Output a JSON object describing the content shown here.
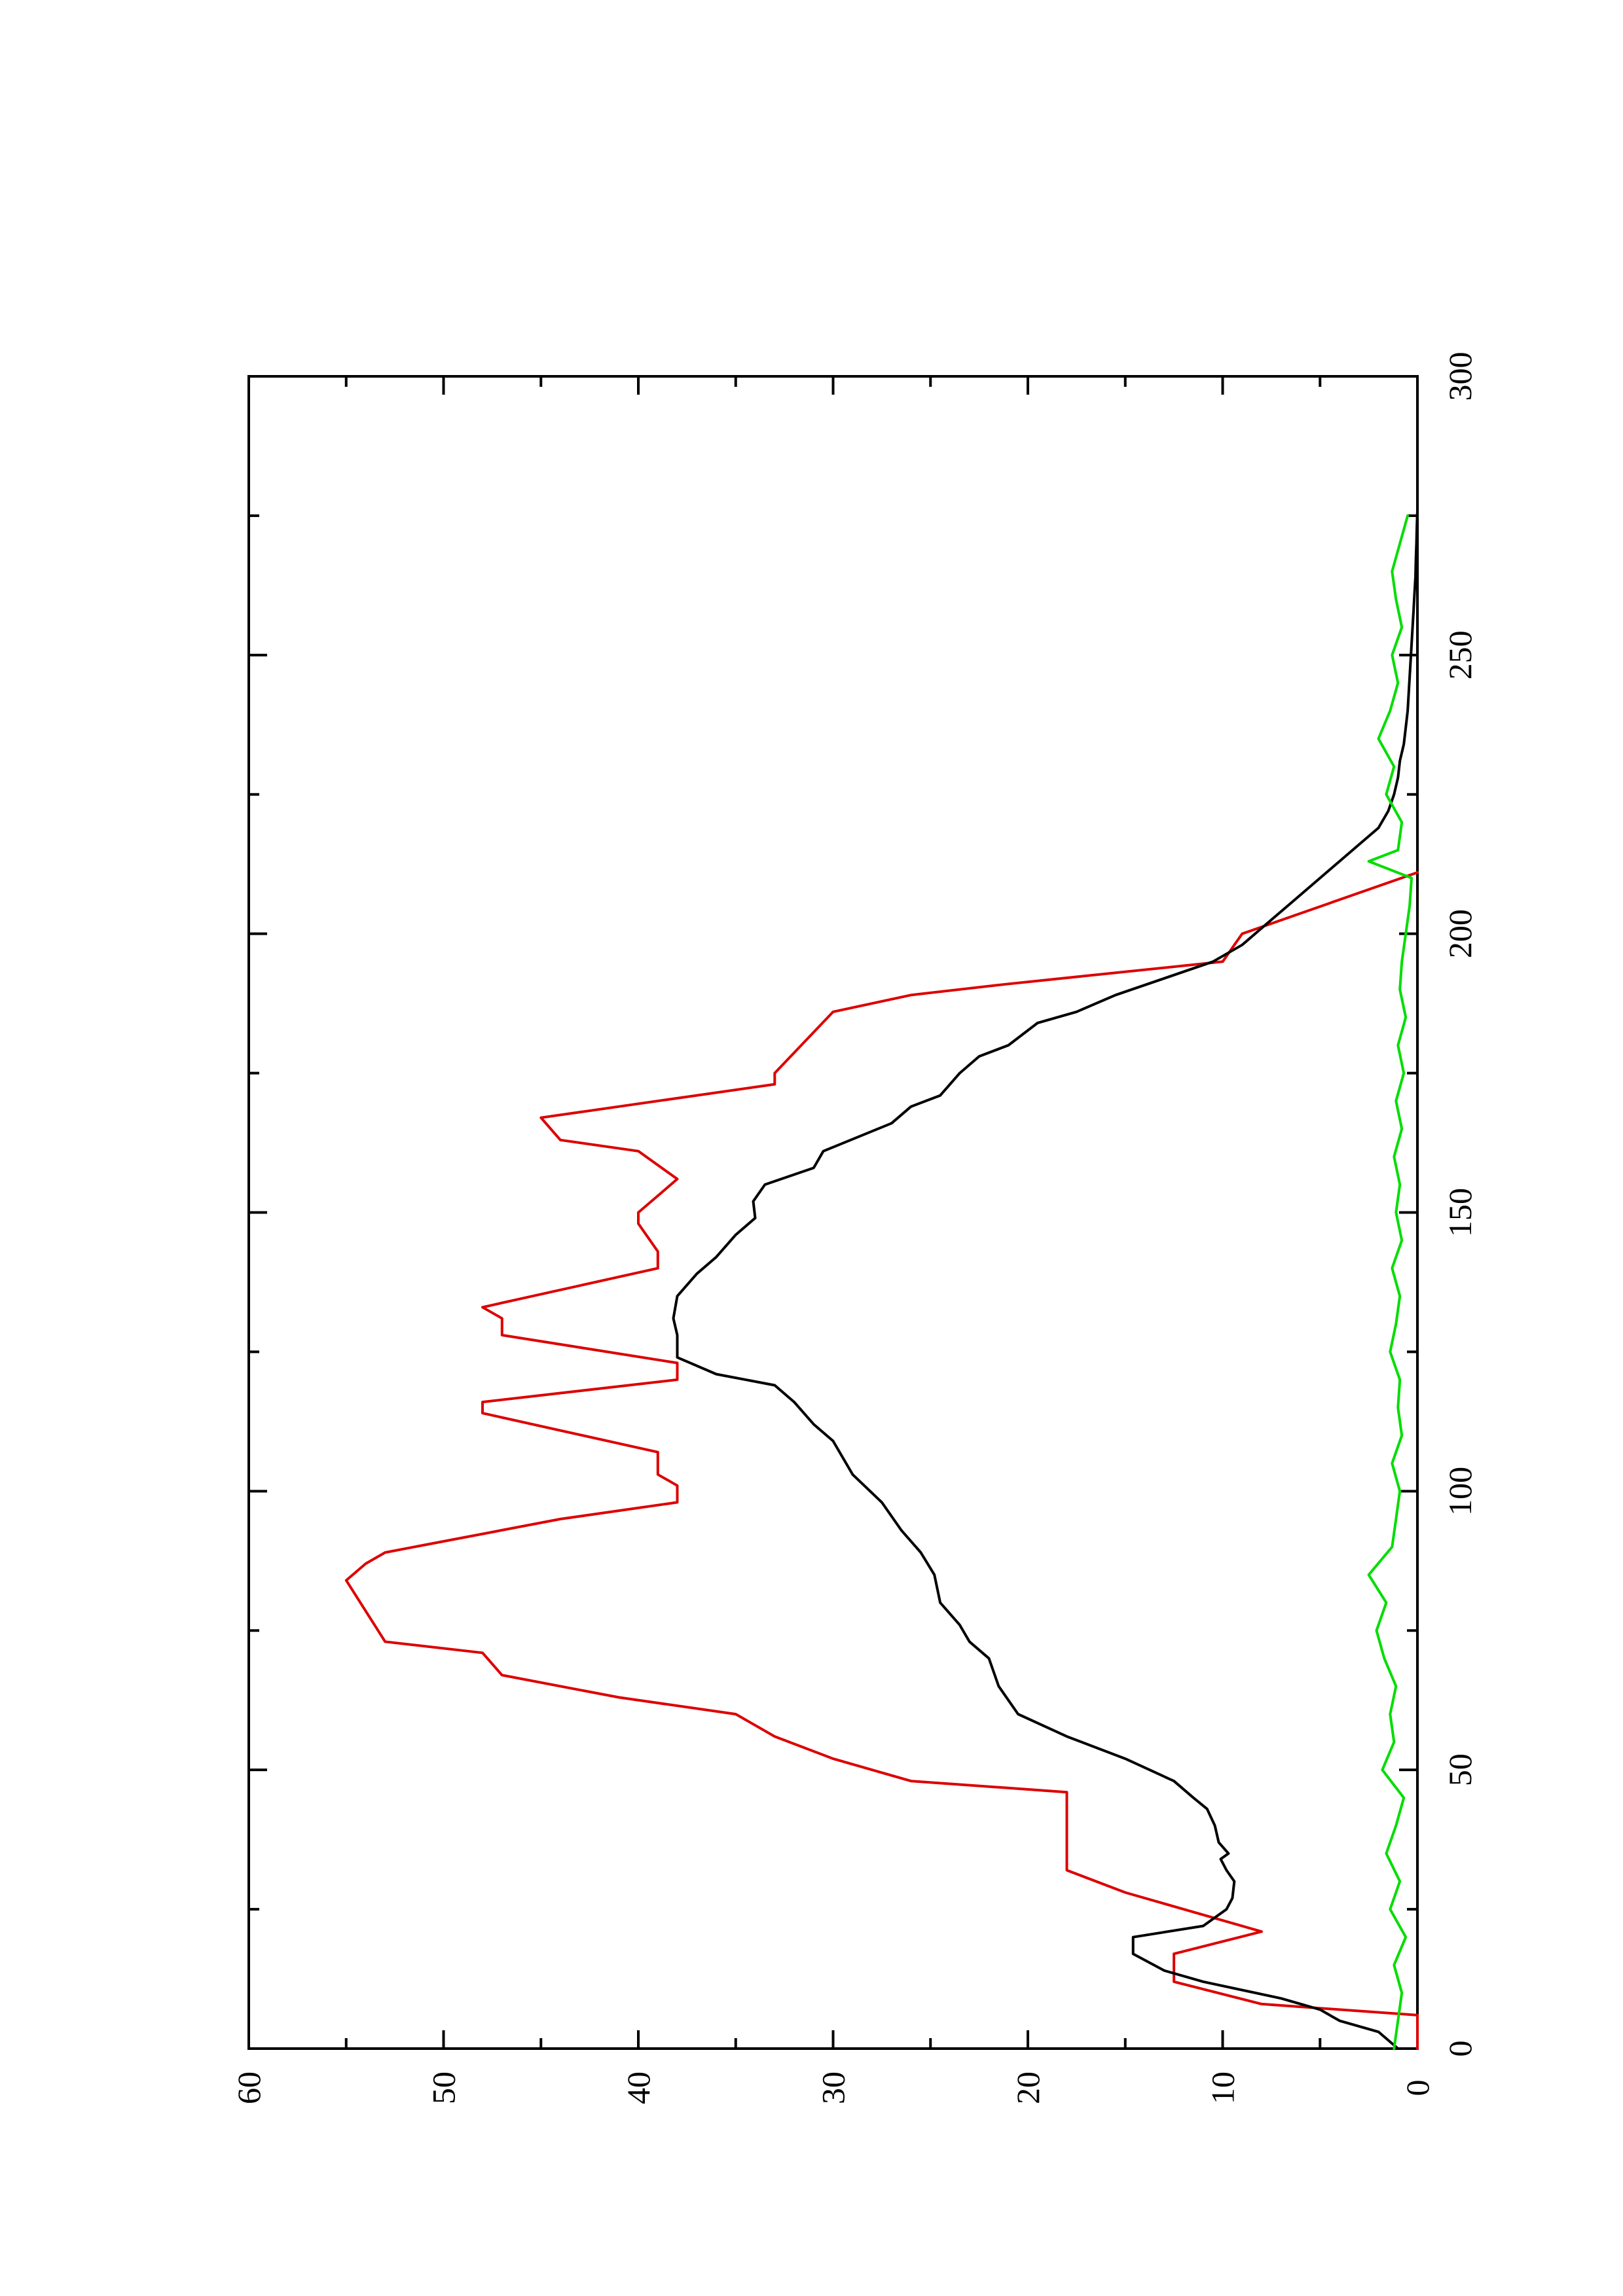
{
  "chart_data": {
    "type": "line",
    "title": "",
    "xlabel": "",
    "ylabel": "",
    "orientation": "rotated-90-counterclockwise",
    "xlim": [
      0,
      300
    ],
    "ylim": [
      0,
      60
    ],
    "x_ticks": [
      {
        "value": 0,
        "label": "0"
      },
      {
        "value": 50,
        "label": "50"
      },
      {
        "value": 100,
        "label": "100"
      },
      {
        "value": 150,
        "label": "150"
      },
      {
        "value": 200,
        "label": "200"
      },
      {
        "value": 250,
        "label": "250"
      },
      {
        "value": 300,
        "label": "300"
      }
    ],
    "y_ticks": [
      {
        "value": 0,
        "label": "0"
      },
      {
        "value": 10,
        "label": "10"
      },
      {
        "value": 20,
        "label": "20"
      },
      {
        "value": 30,
        "label": "30"
      },
      {
        "value": 40,
        "label": "40"
      },
      {
        "value": 50,
        "label": "50"
      },
      {
        "value": 60,
        "label": "60"
      }
    ],
    "grid": false,
    "series": [
      {
        "color": "#dd0000",
        "points": [
          [
            0,
            0
          ],
          [
            6,
            0
          ],
          [
            8,
            8
          ],
          [
            12,
            12.5
          ],
          [
            17,
            12.5
          ],
          [
            21,
            8
          ],
          [
            26,
            13
          ],
          [
            28,
            15
          ],
          [
            32,
            18
          ],
          [
            46,
            18
          ],
          [
            48,
            26
          ],
          [
            52,
            30
          ],
          [
            56,
            33
          ],
          [
            60,
            35
          ],
          [
            63,
            41
          ],
          [
            67,
            47
          ],
          [
            71,
            48
          ],
          [
            73,
            53
          ],
          [
            84,
            55
          ],
          [
            87,
            54
          ],
          [
            89,
            53
          ],
          [
            95,
            44
          ],
          [
            98,
            38
          ],
          [
            101,
            38
          ],
          [
            103,
            39
          ],
          [
            107,
            39
          ],
          [
            114,
            48
          ],
          [
            116,
            48
          ],
          [
            120,
            38
          ],
          [
            123,
            38
          ],
          [
            128,
            47
          ],
          [
            131,
            47
          ],
          [
            133,
            48
          ],
          [
            140,
            39
          ],
          [
            143,
            39
          ],
          [
            148,
            40
          ],
          [
            150,
            40
          ],
          [
            153,
            39
          ],
          [
            156,
            38
          ],
          [
            161,
            40
          ],
          [
            163,
            44
          ],
          [
            167,
            45
          ],
          [
            173,
            33
          ],
          [
            175,
            33
          ],
          [
            186,
            30
          ],
          [
            189,
            26
          ],
          [
            191,
            21
          ],
          [
            195,
            10
          ],
          [
            200,
            9
          ],
          [
            211,
            0
          ]
        ]
      },
      {
        "color": "#000000",
        "points": [
          [
            0,
            1
          ],
          [
            3,
            2
          ],
          [
            5,
            4
          ],
          [
            7,
            5
          ],
          [
            9,
            7
          ],
          [
            12,
            11
          ],
          [
            14,
            13
          ],
          [
            17,
            14.6
          ],
          [
            20,
            14.6
          ],
          [
            22,
            11
          ],
          [
            25,
            9.8
          ],
          [
            27,
            9.5
          ],
          [
            30,
            9.4
          ],
          [
            32,
            9.8
          ],
          [
            34,
            10.1
          ],
          [
            35,
            9.7
          ],
          [
            37,
            10.2
          ],
          [
            40,
            10.4
          ],
          [
            43,
            10.8
          ],
          [
            45,
            11.5
          ],
          [
            48,
            12.5
          ],
          [
            52,
            15
          ],
          [
            56,
            18
          ],
          [
            60,
            20.5
          ],
          [
            65,
            21.5
          ],
          [
            70,
            22
          ],
          [
            73,
            23
          ],
          [
            76,
            23.5
          ],
          [
            80,
            24.5
          ],
          [
            85,
            24.8
          ],
          [
            89,
            25.5
          ],
          [
            93,
            26.5
          ],
          [
            98,
            27.5
          ],
          [
            103,
            29
          ],
          [
            109,
            30
          ],
          [
            112,
            31
          ],
          [
            116,
            32
          ],
          [
            119,
            33
          ],
          [
            121,
            36
          ],
          [
            124,
            38
          ],
          [
            128,
            38
          ],
          [
            131,
            38.2
          ],
          [
            135,
            38
          ],
          [
            139,
            37
          ],
          [
            142,
            36
          ],
          [
            146,
            35
          ],
          [
            149,
            34
          ],
          [
            152,
            34.1
          ],
          [
            155,
            33.5
          ],
          [
            158,
            31
          ],
          [
            161,
            30.5
          ],
          [
            166,
            27
          ],
          [
            169,
            26
          ],
          [
            171,
            24.5
          ],
          [
            175,
            23.5
          ],
          [
            178,
            22.5
          ],
          [
            180,
            21
          ],
          [
            184,
            19.5
          ],
          [
            186,
            17.5
          ],
          [
            189,
            15.5
          ],
          [
            192,
            13
          ],
          [
            195,
            10.5
          ],
          [
            198,
            9
          ],
          [
            201,
            8
          ],
          [
            204,
            7
          ],
          [
            207,
            6
          ],
          [
            210,
            5
          ],
          [
            213,
            4
          ],
          [
            216,
            3
          ],
          [
            219,
            2
          ],
          [
            222,
            1.5
          ],
          [
            225,
            1.2
          ],
          [
            228,
            1
          ],
          [
            231,
            0.9
          ],
          [
            234,
            0.7
          ],
          [
            237,
            0.6
          ],
          [
            240,
            0.5
          ],
          [
            243,
            0.45
          ],
          [
            246,
            0.4
          ],
          [
            249,
            0.35
          ],
          [
            252,
            0.3
          ],
          [
            255,
            0.25
          ],
          [
            258,
            0.2
          ],
          [
            261,
            0.15
          ],
          [
            264,
            0.1
          ],
          [
            267,
            0.08
          ],
          [
            270,
            0.05
          ],
          [
            273,
            0.03
          ],
          [
            276,
            0
          ]
        ]
      },
      {
        "color": "#00dd00",
        "points": [
          [
            0,
            1.2
          ],
          [
            5,
            1.0
          ],
          [
            10,
            0.8
          ],
          [
            15,
            1.2
          ],
          [
            20,
            0.6
          ],
          [
            25,
            1.4
          ],
          [
            30,
            0.9
          ],
          [
            35,
            1.6
          ],
          [
            40,
            1.1
          ],
          [
            45,
            0.7
          ],
          [
            50,
            1.8
          ],
          [
            55,
            1.2
          ],
          [
            60,
            1.4
          ],
          [
            65,
            1.1
          ],
          [
            70,
            1.7
          ],
          [
            75,
            2.1
          ],
          [
            80,
            1.6
          ],
          [
            85,
            2.5
          ],
          [
            90,
            1.3
          ],
          [
            95,
            1.1
          ],
          [
            100,
            0.9
          ],
          [
            105,
            1.3
          ],
          [
            110,
            0.8
          ],
          [
            115,
            1.0
          ],
          [
            120,
            0.9
          ],
          [
            125,
            1.4
          ],
          [
            130,
            1.1
          ],
          [
            135,
            0.9
          ],
          [
            140,
            1.3
          ],
          [
            145,
            0.8
          ],
          [
            150,
            1.1
          ],
          [
            155,
            0.9
          ],
          [
            160,
            1.2
          ],
          [
            165,
            0.8
          ],
          [
            170,
            1.1
          ],
          [
            175,
            0.7
          ],
          [
            180,
            1.0
          ],
          [
            185,
            0.6
          ],
          [
            190,
            0.9
          ],
          [
            195,
            0.8
          ],
          [
            200,
            0.6
          ],
          [
            205,
            0.4
          ],
          [
            210,
            0.3
          ],
          [
            213,
            2.5
          ],
          [
            215,
            1.0
          ],
          [
            220,
            0.8
          ],
          [
            225,
            1.6
          ],
          [
            230,
            1.2
          ],
          [
            235,
            2.0
          ],
          [
            240,
            1.4
          ],
          [
            245,
            1.0
          ],
          [
            250,
            1.3
          ],
          [
            255,
            0.8
          ],
          [
            260,
            1.1
          ],
          [
            265,
            1.3
          ],
          [
            270,
            0.9
          ],
          [
            275,
            0.5
          ]
        ]
      }
    ]
  }
}
